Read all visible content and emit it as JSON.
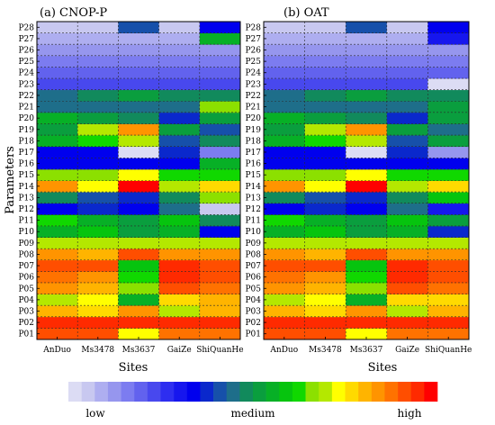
{
  "palette": [
    "#dcdcf4",
    "#c8c8f0",
    "#aeaef0",
    "#9696ee",
    "#7c7cf0",
    "#6262ee",
    "#4848ee",
    "#2e2ef0",
    "#1616ee",
    "#0000ee",
    "#0a28cc",
    "#1650aa",
    "#1e6e8a",
    "#118a5c",
    "#0a9e3e",
    "#07b026",
    "#06c40e",
    "#10d800",
    "#8ce000",
    "#b4e800",
    "#ffff00",
    "#ffda00",
    "#ffb400",
    "#ff9400",
    "#ff7200",
    "#ff4e00",
    "#ff2a00",
    "#ff0000"
  ],
  "chart_data": [
    {
      "type": "heatmap",
      "title": "(a) CNOP-P",
      "xlabel": "Sites",
      "ylabel": "Parameters",
      "x_categories": [
        "AnDuo",
        "Ms3478",
        "Ms3637",
        "GaiZe",
        "ShiQuanHe"
      ],
      "y_categories": [
        "P01",
        "P02",
        "P03",
        "P04",
        "P05",
        "P06",
        "P07",
        "P08",
        "P09",
        "P10",
        "P11",
        "P12",
        "P13",
        "P14",
        "P15",
        "P16",
        "P17",
        "P18",
        "P19",
        "P20",
        "P21",
        "P22",
        "P23",
        "P24",
        "P25",
        "P26",
        "P27",
        "P28"
      ],
      "values": [
        [
          25,
          25,
          20,
          24,
          24
        ],
        [
          26,
          26,
          26,
          26,
          26
        ],
        [
          22,
          21,
          23,
          19,
          22
        ],
        [
          19,
          20,
          15,
          21,
          22
        ],
        [
          23,
          22,
          18,
          25,
          24
        ],
        [
          24,
          23,
          17,
          26,
          25
        ],
        [
          25,
          25,
          16,
          26,
          25
        ],
        [
          23,
          22,
          25,
          23,
          23
        ],
        [
          19,
          19,
          19,
          19,
          19
        ],
        [
          15,
          16,
          14,
          15,
          9
        ],
        [
          17,
          15,
          14,
          16,
          13
        ],
        [
          9,
          10,
          9,
          12,
          1
        ],
        [
          13,
          11,
          10,
          13,
          18
        ],
        [
          23,
          20,
          27,
          19,
          21
        ],
        [
          18,
          18,
          20,
          17,
          17
        ],
        [
          9,
          9,
          9,
          9,
          15
        ],
        [
          9,
          9,
          0,
          10,
          4
        ],
        [
          15,
          17,
          19,
          11,
          13
        ],
        [
          14,
          19,
          23,
          14,
          11
        ],
        [
          15,
          14,
          13,
          10,
          14
        ],
        [
          12,
          12,
          12,
          12,
          18
        ],
        [
          12,
          13,
          14,
          13,
          13
        ],
        [
          6,
          6,
          6,
          6,
          6
        ],
        [
          5,
          5,
          5,
          5,
          5
        ],
        [
          4,
          4,
          4,
          4,
          4
        ],
        [
          3,
          3,
          3,
          3,
          3
        ],
        [
          2,
          2,
          2,
          2,
          15
        ],
        [
          1,
          1,
          11,
          1,
          9
        ]
      ],
      "value_scale": "0 = low, 27 = high (colorbar index)"
    },
    {
      "type": "heatmap",
      "title": "(b) OAT",
      "xlabel": "Sites",
      "ylabel": "",
      "x_categories": [
        "AnDuo",
        "Ms3478",
        "Ms3637",
        "GaiZe",
        "ShiQuanHe"
      ],
      "y_categories": [
        "P01",
        "P02",
        "P03",
        "P04",
        "P05",
        "P06",
        "P07",
        "P08",
        "P09",
        "P10",
        "P11",
        "P12",
        "P13",
        "P14",
        "P15",
        "P16",
        "P17",
        "P18",
        "P19",
        "P20",
        "P21",
        "P22",
        "P23",
        "P24",
        "P25",
        "P26",
        "P27",
        "P28"
      ],
      "values": [
        [
          25,
          25,
          20,
          24,
          24
        ],
        [
          26,
          26,
          26,
          26,
          26
        ],
        [
          22,
          21,
          23,
          19,
          22
        ],
        [
          19,
          20,
          15,
          21,
          21
        ],
        [
          23,
          22,
          18,
          25,
          24
        ],
        [
          24,
          23,
          17,
          26,
          25
        ],
        [
          25,
          25,
          16,
          26,
          25
        ],
        [
          23,
          22,
          25,
          23,
          23
        ],
        [
          19,
          19,
          19,
          19,
          19
        ],
        [
          15,
          16,
          14,
          15,
          10
        ],
        [
          17,
          15,
          14,
          16,
          14
        ],
        [
          9,
          10,
          9,
          12,
          8
        ],
        [
          13,
          11,
          10,
          13,
          16
        ],
        [
          23,
          20,
          27,
          19,
          21
        ],
        [
          18,
          18,
          20,
          17,
          17
        ],
        [
          9,
          9,
          9,
          9,
          9
        ],
        [
          9,
          9,
          0,
          10,
          3
        ],
        [
          15,
          17,
          19,
          11,
          14
        ],
        [
          14,
          19,
          23,
          14,
          12
        ],
        [
          15,
          14,
          13,
          10,
          14
        ],
        [
          12,
          12,
          12,
          12,
          14
        ],
        [
          12,
          13,
          14,
          13,
          13
        ],
        [
          6,
          6,
          6,
          6,
          0
        ],
        [
          5,
          5,
          5,
          5,
          5
        ],
        [
          4,
          4,
          4,
          4,
          4
        ],
        [
          3,
          3,
          3,
          3,
          3
        ],
        [
          2,
          2,
          2,
          2,
          8
        ],
        [
          1,
          1,
          11,
          1,
          9
        ]
      ],
      "value_scale": "0 = low, 27 = high (colorbar index)"
    }
  ],
  "colorbar": {
    "labels": [
      "low",
      "medium",
      "high"
    ]
  }
}
